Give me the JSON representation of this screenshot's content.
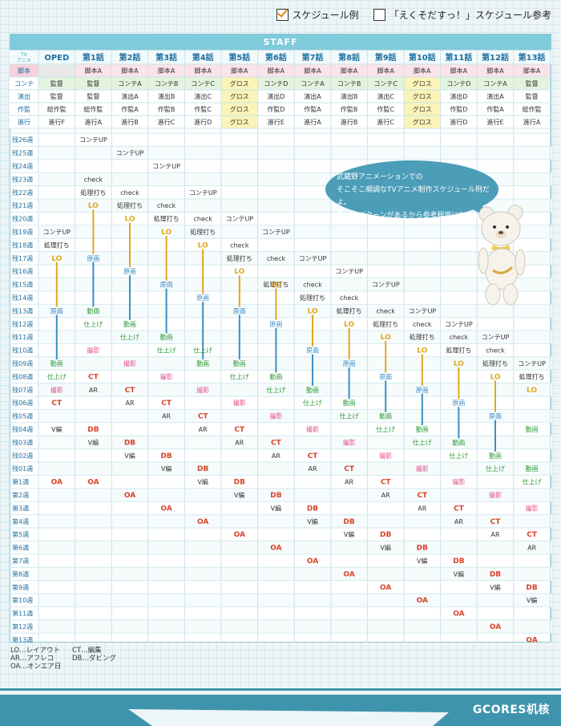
{
  "legend_top": {
    "example": "スケジュール例",
    "reference": "「えくそだすっ！」スケジュール参考"
  },
  "staff_label": "STAFF",
  "corner_label": [
    "TV",
    "アニメ"
  ],
  "episodes": [
    "OPED",
    "第1話",
    "第2話",
    "第3話",
    "第4話",
    "第5話",
    "第6話",
    "第7話",
    "第8話",
    "第9話",
    "第10話",
    "第11話",
    "第12話",
    "第13話"
  ],
  "staff_rows": [
    {
      "label": "脚本",
      "cells": [
        "",
        "脚本A",
        "脚本A",
        "脚本A",
        "脚本A",
        "脚本A",
        "脚本A",
        "脚本A",
        "脚本A",
        "脚本A",
        "脚本A",
        "脚本A",
        "脚本A",
        "脚本A"
      ]
    },
    {
      "label": "コンテ",
      "cells": [
        "監督",
        "監督",
        "コンテA",
        "コンテB",
        "コンテC",
        "グロス",
        "コンテD",
        "コンテA",
        "コンテB",
        "コンテC",
        "グロス",
        "コンテD",
        "コンテA",
        "監督"
      ]
    },
    {
      "label": "演出",
      "cells": [
        "監督",
        "監督",
        "演出A",
        "演出B",
        "演出C",
        "グロス",
        "演出D",
        "演出A",
        "演出B",
        "演出C",
        "グロス",
        "演出D",
        "演出A",
        "監督"
      ]
    },
    {
      "label": "作監",
      "cells": [
        "総作監",
        "総作監",
        "作監A",
        "作監B",
        "作監C",
        "グロス",
        "作監D",
        "作監A",
        "作監B",
        "作監C",
        "グロス",
        "作監D",
        "作監A",
        "総作監"
      ]
    },
    {
      "label": "進行",
      "cells": [
        "進行F",
        "進行A",
        "進行B",
        "進行C",
        "進行D",
        "グロス",
        "進行E",
        "進行A",
        "進行B",
        "進行C",
        "グロス",
        "進行D",
        "進行E",
        "進行A"
      ]
    }
  ],
  "weeks": [
    "残26週",
    "残25週",
    "残24週",
    "残23週",
    "残22週",
    "残21週",
    "残20週",
    "残19週",
    "残18週",
    "残17週",
    "残16週",
    "残15週",
    "残14週",
    "残13週",
    "残12週",
    "残11週",
    "残10週",
    "残09週",
    "残08週",
    "残07週",
    "残06週",
    "残05週",
    "残04週",
    "残03週",
    "残02週",
    "残01週",
    "第1週",
    "第2週",
    "第3週",
    "第4週",
    "第5週",
    "第6週",
    "第7週",
    "第8週",
    "第9週",
    "第10週",
    "第11週",
    "第12週",
    "第13週"
  ],
  "tasks": [
    [
      "1",
      "0",
      "コンテUP"
    ],
    [
      "2",
      "1",
      "コンテUP"
    ],
    [
      "3",
      "2",
      "コンテUP"
    ],
    [
      "1",
      "3",
      "check"
    ],
    [
      "1",
      "4",
      "処理打ち"
    ],
    [
      "2",
      "4",
      "check"
    ],
    [
      "4",
      "4",
      "コンテUP"
    ],
    [
      "2",
      "5",
      "処理打ち"
    ],
    [
      "3",
      "5",
      "check"
    ],
    [
      "1",
      "5",
      "LO"
    ],
    [
      "3",
      "6",
      "処理打ち"
    ],
    [
      "4",
      "6",
      "check"
    ],
    [
      "5",
      "6",
      "コンテUP"
    ],
    [
      "2",
      "6",
      "LO"
    ],
    [
      "0",
      "7",
      "コンテUP"
    ],
    [
      "4",
      "7",
      "処理打ち"
    ],
    [
      "6",
      "7",
      "コンテUP"
    ],
    [
      "3",
      "7",
      "LO"
    ],
    [
      "0",
      "8",
      "処理打ち"
    ],
    [
      "5",
      "8",
      "check"
    ],
    [
      "4",
      "8",
      "LO"
    ],
    [
      "0",
      "9",
      "LO"
    ],
    [
      "5",
      "9",
      "処理打ち"
    ],
    [
      "6",
      "9",
      "check"
    ],
    [
      "7",
      "9",
      "コンテUP"
    ],
    [
      "1",
      "9",
      "原画"
    ],
    [
      "2",
      "10",
      "原画"
    ],
    [
      "8",
      "10",
      "コンテUP"
    ],
    [
      "5",
      "10",
      "LO"
    ],
    [
      "3",
      "11",
      "原画"
    ],
    [
      "6",
      "11",
      "処理打ち"
    ],
    [
      "7",
      "11",
      "check"
    ],
    [
      "9",
      "11",
      "コンテUP"
    ],
    [
      "6",
      "11",
      "LO"
    ],
    [
      "4",
      "12",
      "原画"
    ],
    [
      "7",
      "12",
      "処理打ち"
    ],
    [
      "8",
      "12",
      "check"
    ],
    [
      "0",
      "13",
      "原画"
    ],
    [
      "1",
      "13",
      "動画"
    ],
    [
      "5",
      "13",
      "原画"
    ],
    [
      "7",
      "13",
      "LO"
    ],
    [
      "8",
      "13",
      "処理打ち"
    ],
    [
      "9",
      "13",
      "check"
    ],
    [
      "10",
      "13",
      "コンテUP"
    ],
    [
      "1",
      "14",
      "仕上げ"
    ],
    [
      "2",
      "14",
      "動画"
    ],
    [
      "6",
      "14",
      "原画"
    ],
    [
      "8",
      "14",
      "LO"
    ],
    [
      "9",
      "14",
      "処理打ち"
    ],
    [
      "10",
      "14",
      "check"
    ],
    [
      "11",
      "14",
      "コンテUP"
    ],
    [
      "2",
      "15",
      "仕上げ"
    ],
    [
      "3",
      "15",
      "動画"
    ],
    [
      "9",
      "15",
      "LO"
    ],
    [
      "10",
      "15",
      "処理打ち"
    ],
    [
      "11",
      "15",
      "check"
    ],
    [
      "12",
      "15",
      "コンテUP"
    ],
    [
      "1",
      "16",
      "撮影"
    ],
    [
      "3",
      "16",
      "仕上げ"
    ],
    [
      "4",
      "16",
      "仕上げ"
    ],
    [
      "7",
      "16",
      "原画"
    ],
    [
      "10",
      "16",
      "LO"
    ],
    [
      "11",
      "16",
      "処理打ち"
    ],
    [
      "12",
      "16",
      "check"
    ],
    [
      "0",
      "17",
      "動画"
    ],
    [
      "2",
      "17",
      "撮影"
    ],
    [
      "4",
      "17",
      "動画"
    ],
    [
      "5",
      "17",
      "動画"
    ],
    [
      "8",
      "17",
      "原画"
    ],
    [
      "11",
      "17",
      "LO"
    ],
    [
      "12",
      "17",
      "処理打ち"
    ],
    [
      "13",
      "17",
      "コンテUP"
    ],
    [
      "0",
      "18",
      "仕上げ"
    ],
    [
      "1",
      "18",
      "CT"
    ],
    [
      "3",
      "18",
      "撮影"
    ],
    [
      "5",
      "18",
      "仕上げ"
    ],
    [
      "6",
      "18",
      "動画"
    ],
    [
      "9",
      "18",
      "原画"
    ],
    [
      "12",
      "18",
      "LO"
    ],
    [
      "13",
      "18",
      "処理打ち"
    ],
    [
      "0",
      "19",
      "撮影"
    ],
    [
      "1",
      "19",
      "AR"
    ],
    [
      "2",
      "19",
      "CT"
    ],
    [
      "4",
      "19",
      "撮影"
    ],
    [
      "6",
      "19",
      "仕上げ"
    ],
    [
      "7",
      "19",
      "動画"
    ],
    [
      "10",
      "19",
      "原画"
    ],
    [
      "13",
      "19",
      "LO"
    ],
    [
      "0",
      "20",
      "CT"
    ],
    [
      "2",
      "20",
      "AR"
    ],
    [
      "3",
      "20",
      "CT"
    ],
    [
      "5",
      "20",
      "撮影"
    ],
    [
      "7",
      "20",
      "仕上げ"
    ],
    [
      "8",
      "20",
      "動画"
    ],
    [
      "11",
      "20",
      "原画"
    ],
    [
      "3",
      "21",
      "AR"
    ],
    [
      "4",
      "21",
      "CT"
    ],
    [
      "6",
      "21",
      "撮影"
    ],
    [
      "8",
      "21",
      "仕上げ"
    ],
    [
      "9",
      "21",
      "動画"
    ],
    [
      "12",
      "21",
      "原画"
    ],
    [
      "0",
      "22",
      "V編"
    ],
    [
      "1",
      "22",
      "DB"
    ],
    [
      "4",
      "22",
      "AR"
    ],
    [
      "5",
      "22",
      "CT"
    ],
    [
      "7",
      "22",
      "撮影"
    ],
    [
      "9",
      "22",
      "仕上げ"
    ],
    [
      "10",
      "22",
      "動画"
    ],
    [
      "13",
      "22",
      "動画"
    ],
    [
      "1",
      "23",
      "V編"
    ],
    [
      "2",
      "23",
      "DB"
    ],
    [
      "5",
      "23",
      "AR"
    ],
    [
      "6",
      "23",
      "CT"
    ],
    [
      "8",
      "23",
      "撮影"
    ],
    [
      "10",
      "23",
      "仕上げ"
    ],
    [
      "11",
      "23",
      "動画"
    ],
    [
      "2",
      "24",
      "V編"
    ],
    [
      "3",
      "24",
      "DB"
    ],
    [
      "6",
      "24",
      "AR"
    ],
    [
      "7",
      "24",
      "CT"
    ],
    [
      "9",
      "24",
      "撮影"
    ],
    [
      "11",
      "24",
      "仕上げ"
    ],
    [
      "12",
      "24",
      "動画"
    ],
    [
      "3",
      "25",
      "V編"
    ],
    [
      "4",
      "25",
      "DB"
    ],
    [
      "7",
      "25",
      "AR"
    ],
    [
      "8",
      "25",
      "CT"
    ],
    [
      "10",
      "25",
      "撮影"
    ],
    [
      "12",
      "25",
      "仕上げ"
    ],
    [
      "13",
      "25",
      "動画"
    ],
    [
      "0",
      "26",
      "OA"
    ],
    [
      "1",
      "26",
      "OA"
    ],
    [
      "4",
      "26",
      "V編"
    ],
    [
      "5",
      "26",
      "DB"
    ],
    [
      "8",
      "26",
      "AR"
    ],
    [
      "9",
      "26",
      "CT"
    ],
    [
      "11",
      "26",
      "撮影"
    ],
    [
      "13",
      "26",
      "仕上げ"
    ],
    [
      "2",
      "27",
      "OA"
    ],
    [
      "5",
      "27",
      "V編"
    ],
    [
      "6",
      "27",
      "DB"
    ],
    [
      "9",
      "27",
      "AR"
    ],
    [
      "10",
      "27",
      "CT"
    ],
    [
      "12",
      "27",
      "撮影"
    ],
    [
      "3",
      "28",
      "OA"
    ],
    [
      "6",
      "28",
      "V編"
    ],
    [
      "7",
      "28",
      "DB"
    ],
    [
      "10",
      "28",
      "AR"
    ],
    [
      "11",
      "28",
      "CT"
    ],
    [
      "13",
      "28",
      "撮影"
    ],
    [
      "4",
      "29",
      "OA"
    ],
    [
      "7",
      "29",
      "V編"
    ],
    [
      "8",
      "29",
      "DB"
    ],
    [
      "11",
      "29",
      "AR"
    ],
    [
      "12",
      "29",
      "CT"
    ],
    [
      "5",
      "30",
      "OA"
    ],
    [
      "8",
      "30",
      "V編"
    ],
    [
      "9",
      "30",
      "DB"
    ],
    [
      "12",
      "30",
      "AR"
    ],
    [
      "13",
      "30",
      "CT"
    ],
    [
      "6",
      "31",
      "OA"
    ],
    [
      "9",
      "31",
      "V編"
    ],
    [
      "10",
      "31",
      "DB"
    ],
    [
      "13",
      "31",
      "AR"
    ],
    [
      "7",
      "32",
      "OA"
    ],
    [
      "10",
      "32",
      "V編"
    ],
    [
      "11",
      "32",
      "DB"
    ],
    [
      "8",
      "33",
      "OA"
    ],
    [
      "11",
      "33",
      "V編"
    ],
    [
      "12",
      "33",
      "DB"
    ],
    [
      "9",
      "34",
      "OA"
    ],
    [
      "12",
      "34",
      "V編"
    ],
    [
      "13",
      "34",
      "DB"
    ],
    [
      "10",
      "35",
      "OA"
    ],
    [
      "13",
      "35",
      "V編"
    ],
    [
      "11",
      "36",
      "OA"
    ],
    [
      "12",
      "37",
      "OA"
    ],
    [
      "13",
      "38",
      "OA"
    ]
  ],
  "bubble_lines": [
    "武蔵野アニメーションでの",
    "そこそこ順調なTVアニメ制作スケジュール例だよ。",
    "色んなパターンがあるから参考程度にね。"
  ],
  "footer_legend": [
    [
      "LO…レイアウト",
      "CT…編集"
    ],
    [
      "AR…アフレコ",
      "DB…ダビング"
    ],
    [
      "OA…オンエア日",
      ""
    ]
  ],
  "watermark": "GCORES机核",
  "colors": {
    "header": "#7ecbdc",
    "lo": "#e0a81c",
    "genga": "#3b8fc4",
    "douga": "#2f9e3a",
    "shiage": "#2f9e3a",
    "satsuei": "#e0508c",
    "ct": "#d9442a",
    "oa": "#d9442a",
    "default": "#333333",
    "gross": "#fbf3b7",
    "staff_label_bg": "#f7d1dc",
    "rowlabel": "#1e6fa1"
  }
}
